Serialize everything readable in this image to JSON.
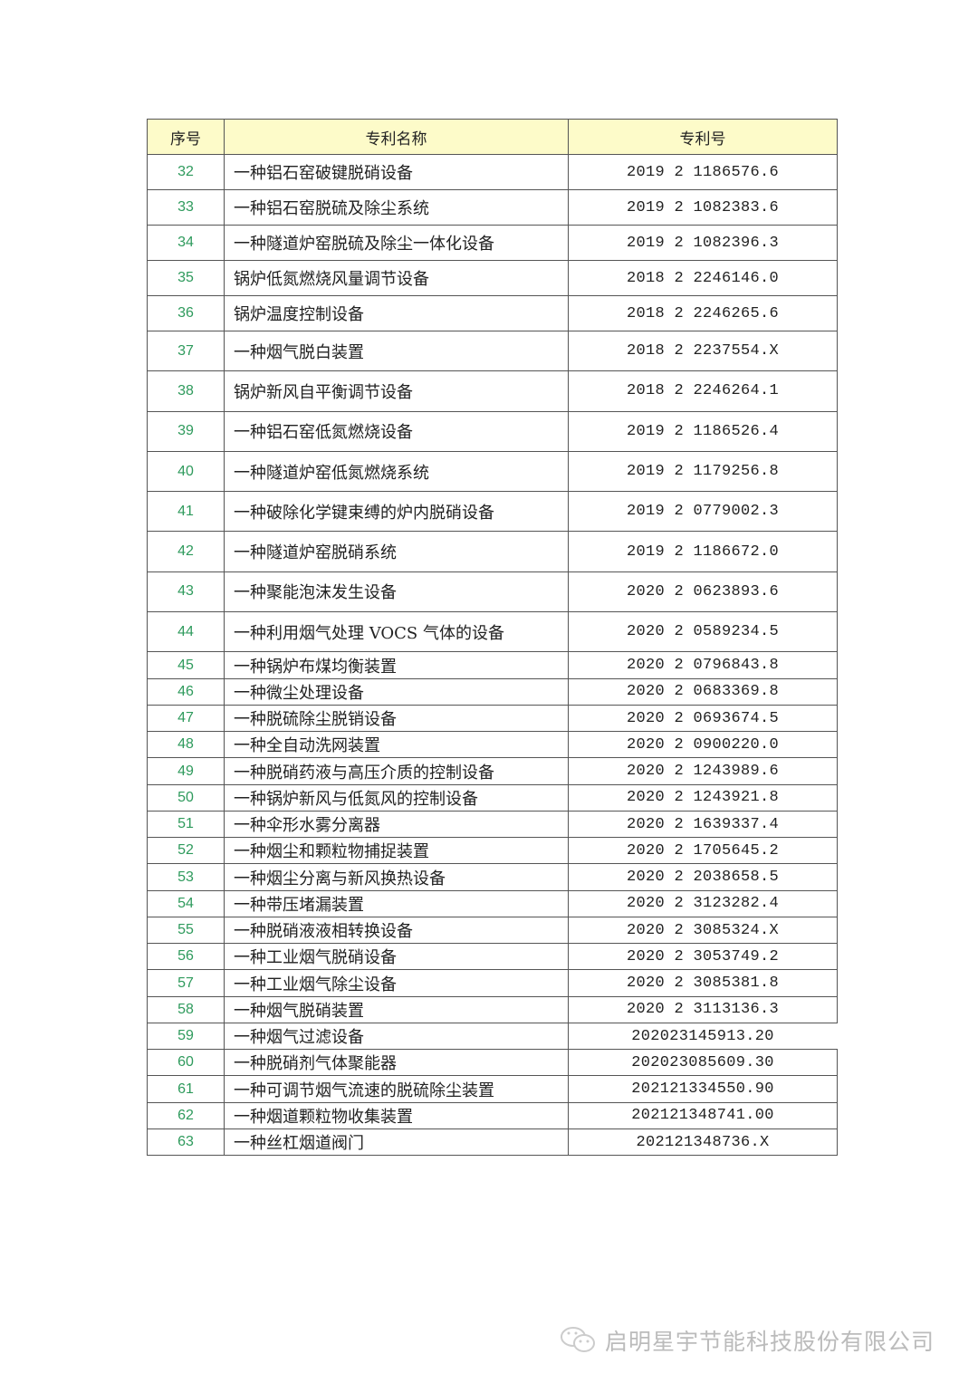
{
  "table": {
    "headers": [
      "序号",
      "专利名称",
      "专利号"
    ],
    "rows": [
      [
        "32",
        "一种铝石窑破键脱硝设备",
        "2019 2 1186576.6"
      ],
      [
        "33",
        "一种铝石窑脱硫及除尘系统",
        "2019 2 1082383.6"
      ],
      [
        "34",
        "一种隧道炉窑脱硫及除尘一体化设备",
        "2019 2 1082396.3"
      ],
      [
        "35",
        "锅炉低氮燃烧风量调节设备",
        "2018 2 2246146.0"
      ],
      [
        "36",
        "锅炉温度控制设备",
        "2018 2 2246265.6"
      ],
      [
        "37",
        "一种烟气脱白装置",
        "2018 2 2237554.X"
      ],
      [
        "38",
        "锅炉新风自平衡调节设备",
        "2018 2 2246264.1"
      ],
      [
        "39",
        "一种铝石窑低氮燃烧设备",
        "2019 2 1186526.4"
      ],
      [
        "40",
        "一种隧道炉窑低氮燃烧系统",
        "2019 2 1179256.8"
      ],
      [
        "41",
        "一种破除化学键束缚的炉内脱硝设备",
        "2019 2 0779002.3"
      ],
      [
        "42",
        "一种隧道炉窑脱硝系统",
        "2019 2 1186672.0"
      ],
      [
        "43",
        "一种聚能泡沫发生设备",
        "2020 2 0623893.6"
      ],
      [
        "44",
        "一种利用烟气处理 VOCS 气体的设备",
        "2020 2 0589234.5"
      ],
      [
        "45",
        "一种锅炉布煤均衡装置",
        "2020 2 0796843.8"
      ],
      [
        "46",
        "一种微尘处理设备",
        "2020 2 0683369.8"
      ],
      [
        "47",
        "一种脱硫除尘脱销设备",
        "2020 2 0693674.5"
      ],
      [
        "48",
        "一种全自动洗网装置",
        "2020 2 0900220.0"
      ],
      [
        "49",
        "一种脱硝药液与高压介质的控制设备",
        "2020 2 1243989.6"
      ],
      [
        "50",
        "一种锅炉新风与低氮风的控制设备",
        "2020 2 1243921.8"
      ],
      [
        "51",
        "一种伞形水雾分离器",
        "2020 2 1639337.4"
      ],
      [
        "52",
        "一种烟尘和颗粒物捕捉装置",
        "2020 2 1705645.2"
      ],
      [
        "53",
        "一种烟尘分离与新风换热设备",
        "2020 2 2038658.5"
      ],
      [
        "54",
        "一种带压堵漏装置",
        "2020 2 3123282.4"
      ],
      [
        "55",
        "一种脱硝液液相转换设备",
        "2020 2 3085324.X"
      ],
      [
        "56",
        "一种工业烟气脱硝设备",
        "2020 2 3053749.2"
      ],
      [
        "57",
        "一种工业烟气除尘设备",
        "2020 2 3085381.8"
      ],
      [
        "58",
        "一种烟气脱硝装置",
        "2020 2 3113136.3"
      ],
      [
        "59",
        "一种烟气过滤设备",
        "202023145913.20"
      ],
      [
        "60",
        "一种脱硝剂气体聚能器",
        "202023085609.30"
      ],
      [
        "61",
        "一种可调节烟气流速的脱硫除尘装置",
        "202121334550.90"
      ],
      [
        "62",
        "一种烟道颗粒物收集装置",
        "202121348741.00"
      ],
      [
        "63",
        "一种丝杠烟道阀门",
        "202121348736.X"
      ]
    ]
  },
  "footer": {
    "icon": "wechat-icon",
    "text": "启明星宇节能科技股份有限公司"
  },
  "colors": {
    "header_bg": "#fdfbc9",
    "index_text": "#2e9a5c"
  }
}
